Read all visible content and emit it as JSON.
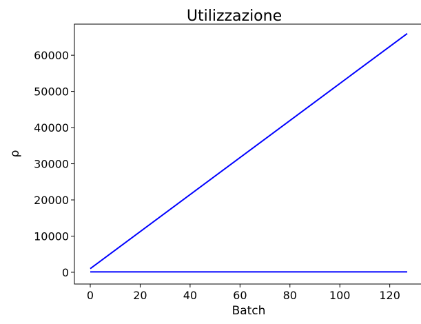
{
  "chart_data": {
    "type": "line",
    "title": "Utilizzazione",
    "xlabel": "Batch",
    "ylabel": "ρ",
    "xlim": [
      -6.35,
      133.35
    ],
    "ylim": [
      -3250,
      68600
    ],
    "xticks": [
      0,
      20,
      40,
      60,
      80,
      100,
      120
    ],
    "yticks": [
      0,
      10000,
      20000,
      30000,
      40000,
      50000,
      60000
    ],
    "grid": false,
    "legend": "none",
    "color": "#0000ff",
    "series": [
      {
        "x": [
          0,
          127
        ],
        "y": [
          1000,
          66000
        ]
      },
      {
        "x": [
          0,
          127
        ],
        "y": [
          100,
          100
        ]
      }
    ]
  }
}
